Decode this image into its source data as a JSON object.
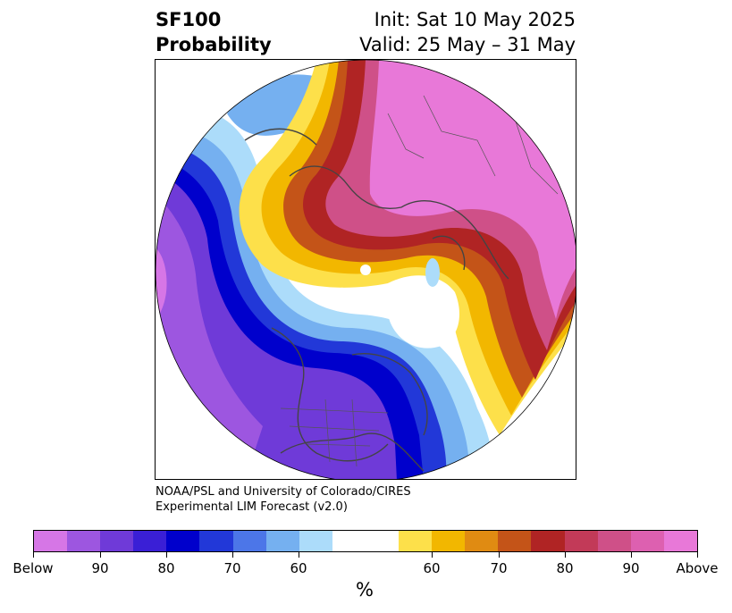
{
  "title": {
    "left_line1": "SF100",
    "left_line2": "Probability",
    "right_line1": "Init: Sat 10 May 2025",
    "right_line2": "Valid: 25 May – 31 May"
  },
  "credit": {
    "line1": "NOAA/PSL and University of Colorado/CIRES",
    "line2": "Experimental LIM Forecast (v2.0)"
  },
  "colorbar": {
    "colors": [
      "#d676e6",
      "#9d56e0",
      "#6f3ad8",
      "#3a1fd6",
      "#0000cc",
      "#2238d8",
      "#4c76e8",
      "#75b0f0",
      "#acdcfa",
      "#ffffff",
      "#ffffff",
      "#fde04a",
      "#f2b700",
      "#e08b12",
      "#c45418",
      "#b02424",
      "#c23a58",
      "#cf5088",
      "#dd60b0",
      "#e878d8"
    ],
    "tick_labels": [
      "Below",
      "90",
      "80",
      "70",
      "60",
      "60",
      "70",
      "80",
      "90",
      "Above"
    ],
    "unit": "%"
  },
  "map": {
    "projection": "north-polar-stereographic",
    "below_color": "#6a3ad8",
    "above_color": "#e87ad8"
  }
}
